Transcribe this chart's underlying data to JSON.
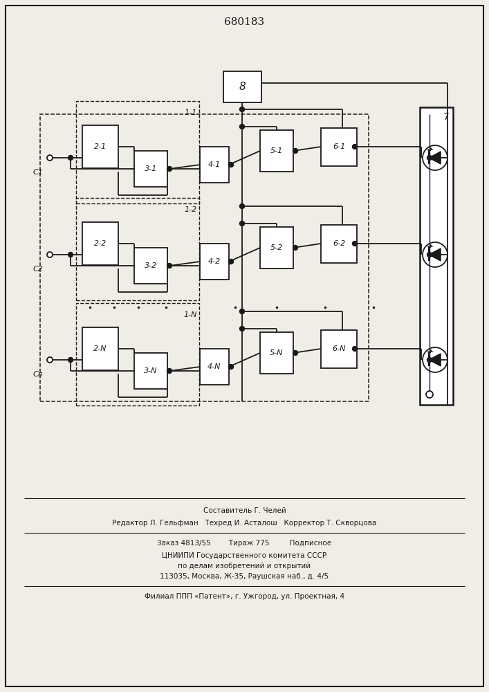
{
  "title": "680183",
  "bg_color": "#f0ede6",
  "line_color": "#1a1a1a",
  "box_color": "#ffffff",
  "footer_lines": [
    "Составитель Г. Челей",
    "Редактор Л. Гельфман   Техред И. Асталош   Корректор Т. Скворцова",
    "Заказ 4813/55        Тираж 775         Подписное",
    "ЦНИИПИ Государственного комитета СССР",
    "по делам изобретений и открытий",
    "113035, Москва, Ж-35, Раушская наб., д. 4/5",
    "Филиал ППП «Патент», г. Ужгород, ул. Проектная, 4"
  ]
}
